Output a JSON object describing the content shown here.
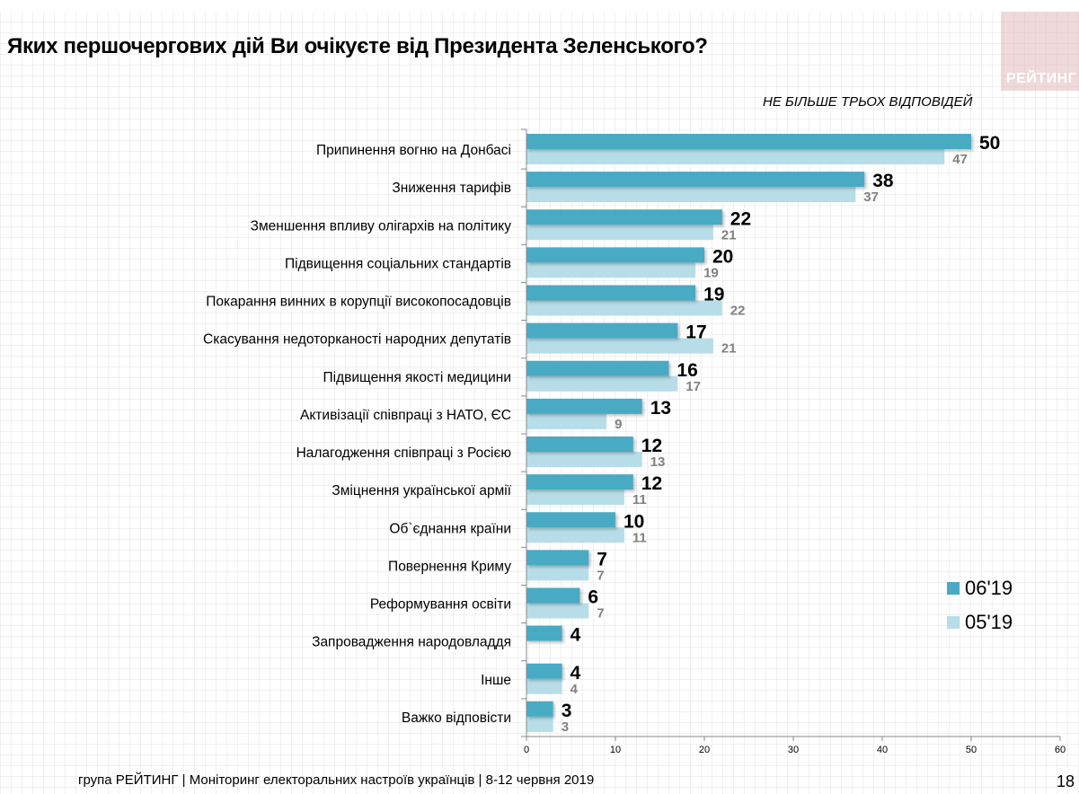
{
  "header": {
    "title": "Яких першочергових дій Ви очікуєте від Президента Зеленського?",
    "note": "НЕ БІЛЬШЕ ТРЬОХ ВІДПОВІДЕЙ",
    "logo_text": "РЕЙТИНГ"
  },
  "footer": {
    "source": "група РЕЙТИНГ | Моніторинг електоральних настроїв українців  | 8-12 червня 2019",
    "page_number": "18"
  },
  "colors": {
    "series_current": "#4aaac4",
    "series_previous": "#b7dde8",
    "label_current": "#000000",
    "label_previous": "#808080"
  },
  "chart_data": {
    "type": "bar",
    "orientation": "horizontal",
    "title": "Яких першочергових дій Ви очікуєте від Президента Зеленського?",
    "subtitle": "НЕ БІЛЬШЕ ТРЬОХ ВІДПОВІДЕЙ",
    "xlabel": "",
    "ylabel": "",
    "xlim": [
      0,
      60
    ],
    "xticks": [
      0,
      10,
      20,
      30,
      40,
      50,
      60
    ],
    "grid": false,
    "legend_position": "right",
    "categories": [
      "Припинення вогню на Донбасі",
      "Зниження тарифів",
      "Зменшення впливу олігархів на політику",
      "Підвищення соціальних стандартів",
      "Покарання винних в корупції високопосадовців",
      "Скасування недоторканості народних депутатів",
      "Підвищення якості медицини",
      "Активізації співпраці з НАТО, ЄС",
      "Налагодження співпраці з Росією",
      "Зміцнення української армії",
      "Об`єднання країни",
      "Повернення Криму",
      "Реформування освіти",
      "Запровадження народовладдя",
      "Інше",
      "Важко відповісти"
    ],
    "series": [
      {
        "name": "06'19",
        "values": [
          50,
          38,
          22,
          20,
          19,
          17,
          16,
          13,
          12,
          12,
          10,
          7,
          6,
          4,
          4,
          3
        ]
      },
      {
        "name": "05'19",
        "values": [
          47,
          37,
          21,
          19,
          22,
          21,
          17,
          9,
          13,
          11,
          11,
          7,
          7,
          null,
          4,
          3
        ]
      }
    ]
  }
}
